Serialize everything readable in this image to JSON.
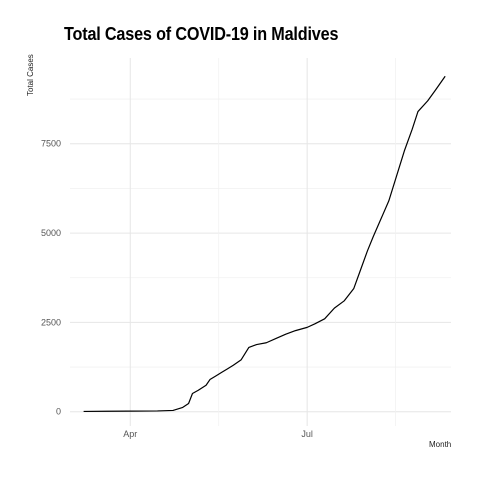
{
  "chart_data": {
    "type": "line",
    "title": "Total Cases of COVID-19 in Maldives",
    "xlabel": "Month",
    "ylabel": "Total Cases",
    "x_ticks": [
      {
        "label": "Apr",
        "date": "2020-04-01"
      },
      {
        "label": "Jul",
        "date": "2020-07-01"
      }
    ],
    "y_ticks": [
      0,
      2500,
      5000,
      7500
    ],
    "ylim": [
      -400,
      9900
    ],
    "xlim": [
      "2020-03-01",
      "2020-09-13"
    ],
    "grid": true,
    "series": [
      {
        "color": "#000000",
        "points": [
          {
            "x": "2020-03-08",
            "y": 8
          },
          {
            "x": "2020-03-20",
            "y": 13
          },
          {
            "x": "2020-04-01",
            "y": 17
          },
          {
            "x": "2020-04-15",
            "y": 22
          },
          {
            "x": "2020-04-23",
            "y": 35
          },
          {
            "x": "2020-04-28",
            "y": 120
          },
          {
            "x": "2020-05-01",
            "y": 230
          },
          {
            "x": "2020-05-03",
            "y": 510
          },
          {
            "x": "2020-05-06",
            "y": 600
          },
          {
            "x": "2020-05-10",
            "y": 740
          },
          {
            "x": "2020-05-12",
            "y": 900
          },
          {
            "x": "2020-05-15",
            "y": 1000
          },
          {
            "x": "2020-05-18",
            "y": 1100
          },
          {
            "x": "2020-05-21",
            "y": 1200
          },
          {
            "x": "2020-05-24",
            "y": 1300
          },
          {
            "x": "2020-05-28",
            "y": 1450
          },
          {
            "x": "2020-06-01",
            "y": 1800
          },
          {
            "x": "2020-06-05",
            "y": 1880
          },
          {
            "x": "2020-06-10",
            "y": 1930
          },
          {
            "x": "2020-06-15",
            "y": 2050
          },
          {
            "x": "2020-06-20",
            "y": 2170
          },
          {
            "x": "2020-06-25",
            "y": 2270
          },
          {
            "x": "2020-07-01",
            "y": 2360
          },
          {
            "x": "2020-07-05",
            "y": 2460
          },
          {
            "x": "2020-07-10",
            "y": 2600
          },
          {
            "x": "2020-07-15",
            "y": 2900
          },
          {
            "x": "2020-07-20",
            "y": 3100
          },
          {
            "x": "2020-07-25",
            "y": 3450
          },
          {
            "x": "2020-07-28",
            "y": 3900
          },
          {
            "x": "2020-08-01",
            "y": 4500
          },
          {
            "x": "2020-08-04",
            "y": 4900
          },
          {
            "x": "2020-08-08",
            "y": 5400
          },
          {
            "x": "2020-08-12",
            "y": 5900
          },
          {
            "x": "2020-08-16",
            "y": 6600
          },
          {
            "x": "2020-08-20",
            "y": 7300
          },
          {
            "x": "2020-08-24",
            "y": 7900
          },
          {
            "x": "2020-08-27",
            "y": 8400
          },
          {
            "x": "2020-09-01",
            "y": 8700
          },
          {
            "x": "2020-09-05",
            "y": 9000
          },
          {
            "x": "2020-09-10",
            "y": 9390
          }
        ]
      }
    ]
  }
}
